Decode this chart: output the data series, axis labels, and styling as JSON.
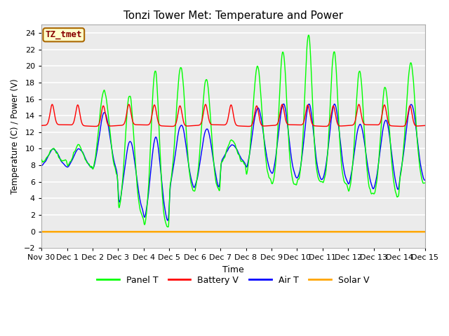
{
  "title": "Tonzi Tower Met: Temperature and Power",
  "xlabel": "Time",
  "ylabel": "Temperature (C) / Power (V)",
  "ylim": [
    -2,
    25
  ],
  "yticks": [
    -2,
    0,
    2,
    4,
    6,
    8,
    10,
    12,
    14,
    16,
    18,
    20,
    22,
    24
  ],
  "xtick_labels": [
    "Nov 30",
    "Dec 1",
    "Dec 2",
    "Dec 3",
    "Dec 4",
    "Dec 5",
    "Dec 6",
    "Dec 7",
    "Dec 8",
    "Dec 9",
    "Dec 10",
    "Dec 11",
    "Dec 12",
    "Dec 13",
    "Dec 14",
    "Dec 15"
  ],
  "annotation_text": "TZ_tmet",
  "annotation_box_color": "#FFFFCC",
  "annotation_border_color": "#AA6600",
  "legend_entries": [
    "Panel T",
    "Battery V",
    "Air T",
    "Solar V"
  ],
  "line_colors": [
    "#00FF00",
    "#FF0000",
    "#0000FF",
    "#FFA500"
  ],
  "background_color": "#F0F0F0",
  "grid_color": "#FFFFFF"
}
